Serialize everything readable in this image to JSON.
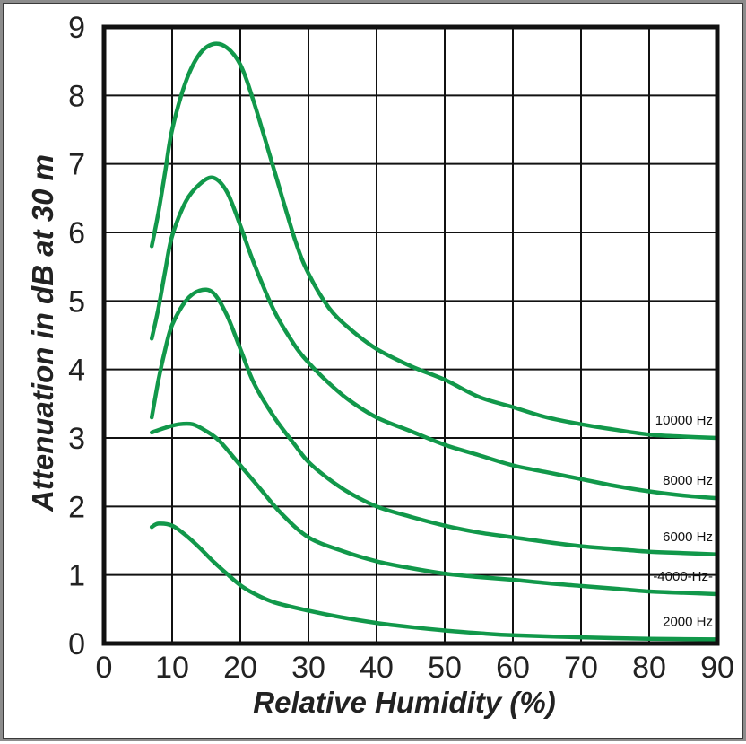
{
  "chart_data": {
    "type": "line",
    "title": "",
    "xlabel": "Relative Humidity (%)",
    "ylabel": "Attenuation in dB at 30 m",
    "xlim": [
      0,
      90
    ],
    "ylim": [
      0,
      9
    ],
    "x_ticks": [
      "0",
      "10",
      "20",
      "30",
      "40",
      "50",
      "60",
      "70",
      "80",
      "90"
    ],
    "y_ticks": [
      "0",
      "1",
      "2",
      "3",
      "4",
      "5",
      "6",
      "7",
      "8",
      "9"
    ],
    "grid": true,
    "colors": {
      "line": "#11984a",
      "grid": "#111111",
      "frame": "#111111"
    },
    "series": [
      {
        "name": "10000 Hz",
        "x": [
          7,
          8,
          9,
          10,
          12,
          14,
          16,
          18,
          20,
          22,
          25,
          28,
          30,
          33,
          36,
          40,
          45,
          50,
          55,
          60,
          65,
          70,
          75,
          80,
          85,
          90
        ],
        "y": [
          5.8,
          6.3,
          6.9,
          7.5,
          8.2,
          8.6,
          8.75,
          8.7,
          8.45,
          7.9,
          6.9,
          5.9,
          5.4,
          4.9,
          4.6,
          4.3,
          4.05,
          3.85,
          3.6,
          3.45,
          3.3,
          3.2,
          3.12,
          3.05,
          3.02,
          3.0
        ]
      },
      {
        "name": "8000 Hz",
        "x": [
          7,
          8,
          9,
          10,
          12,
          14,
          16,
          18,
          20,
          22,
          25,
          28,
          30,
          33,
          36,
          40,
          45,
          50,
          55,
          60,
          65,
          70,
          75,
          80,
          85,
          90
        ],
        "y": [
          4.45,
          4.9,
          5.45,
          5.95,
          6.45,
          6.7,
          6.8,
          6.6,
          6.1,
          5.55,
          4.85,
          4.35,
          4.1,
          3.8,
          3.55,
          3.3,
          3.1,
          2.9,
          2.75,
          2.6,
          2.5,
          2.4,
          2.3,
          2.22,
          2.16,
          2.12
        ]
      },
      {
        "name": "6000 Hz",
        "x": [
          7,
          8,
          9,
          10,
          12,
          14,
          16,
          18,
          20,
          22,
          25,
          28,
          30,
          33,
          36,
          40,
          45,
          50,
          55,
          60,
          65,
          70,
          75,
          80,
          85,
          90
        ],
        "y": [
          3.3,
          3.85,
          4.3,
          4.65,
          5.0,
          5.15,
          5.12,
          4.8,
          4.3,
          3.8,
          3.3,
          2.9,
          2.65,
          2.4,
          2.2,
          2.0,
          1.85,
          1.72,
          1.62,
          1.55,
          1.48,
          1.42,
          1.38,
          1.34,
          1.32,
          1.3
        ]
      },
      {
        "name": "4000 Hz",
        "x": [
          7,
          9,
          11,
          13,
          15,
          17,
          20,
          23,
          26,
          30,
          35,
          40,
          45,
          50,
          55,
          60,
          65,
          70,
          75,
          80,
          85,
          90
        ],
        "y": [
          3.08,
          3.15,
          3.2,
          3.2,
          3.1,
          2.95,
          2.6,
          2.25,
          1.9,
          1.55,
          1.35,
          1.2,
          1.1,
          1.02,
          0.97,
          0.93,
          0.88,
          0.84,
          0.8,
          0.76,
          0.74,
          0.72
        ]
      },
      {
        "name": "2000 Hz",
        "x": [
          7,
          8,
          10,
          12,
          14,
          16,
          18,
          20,
          22,
          25,
          30,
          35,
          40,
          45,
          50,
          55,
          60,
          70,
          80,
          90
        ],
        "y": [
          1.7,
          1.75,
          1.72,
          1.58,
          1.4,
          1.2,
          1.02,
          0.85,
          0.73,
          0.6,
          0.48,
          0.38,
          0.3,
          0.24,
          0.19,
          0.15,
          0.12,
          0.09,
          0.07,
          0.06
        ]
      }
    ],
    "series_labels": [
      "10000 Hz",
      "8000 Hz",
      "6000 Hz",
      "-4000-Hz-",
      "2000 Hz"
    ]
  }
}
